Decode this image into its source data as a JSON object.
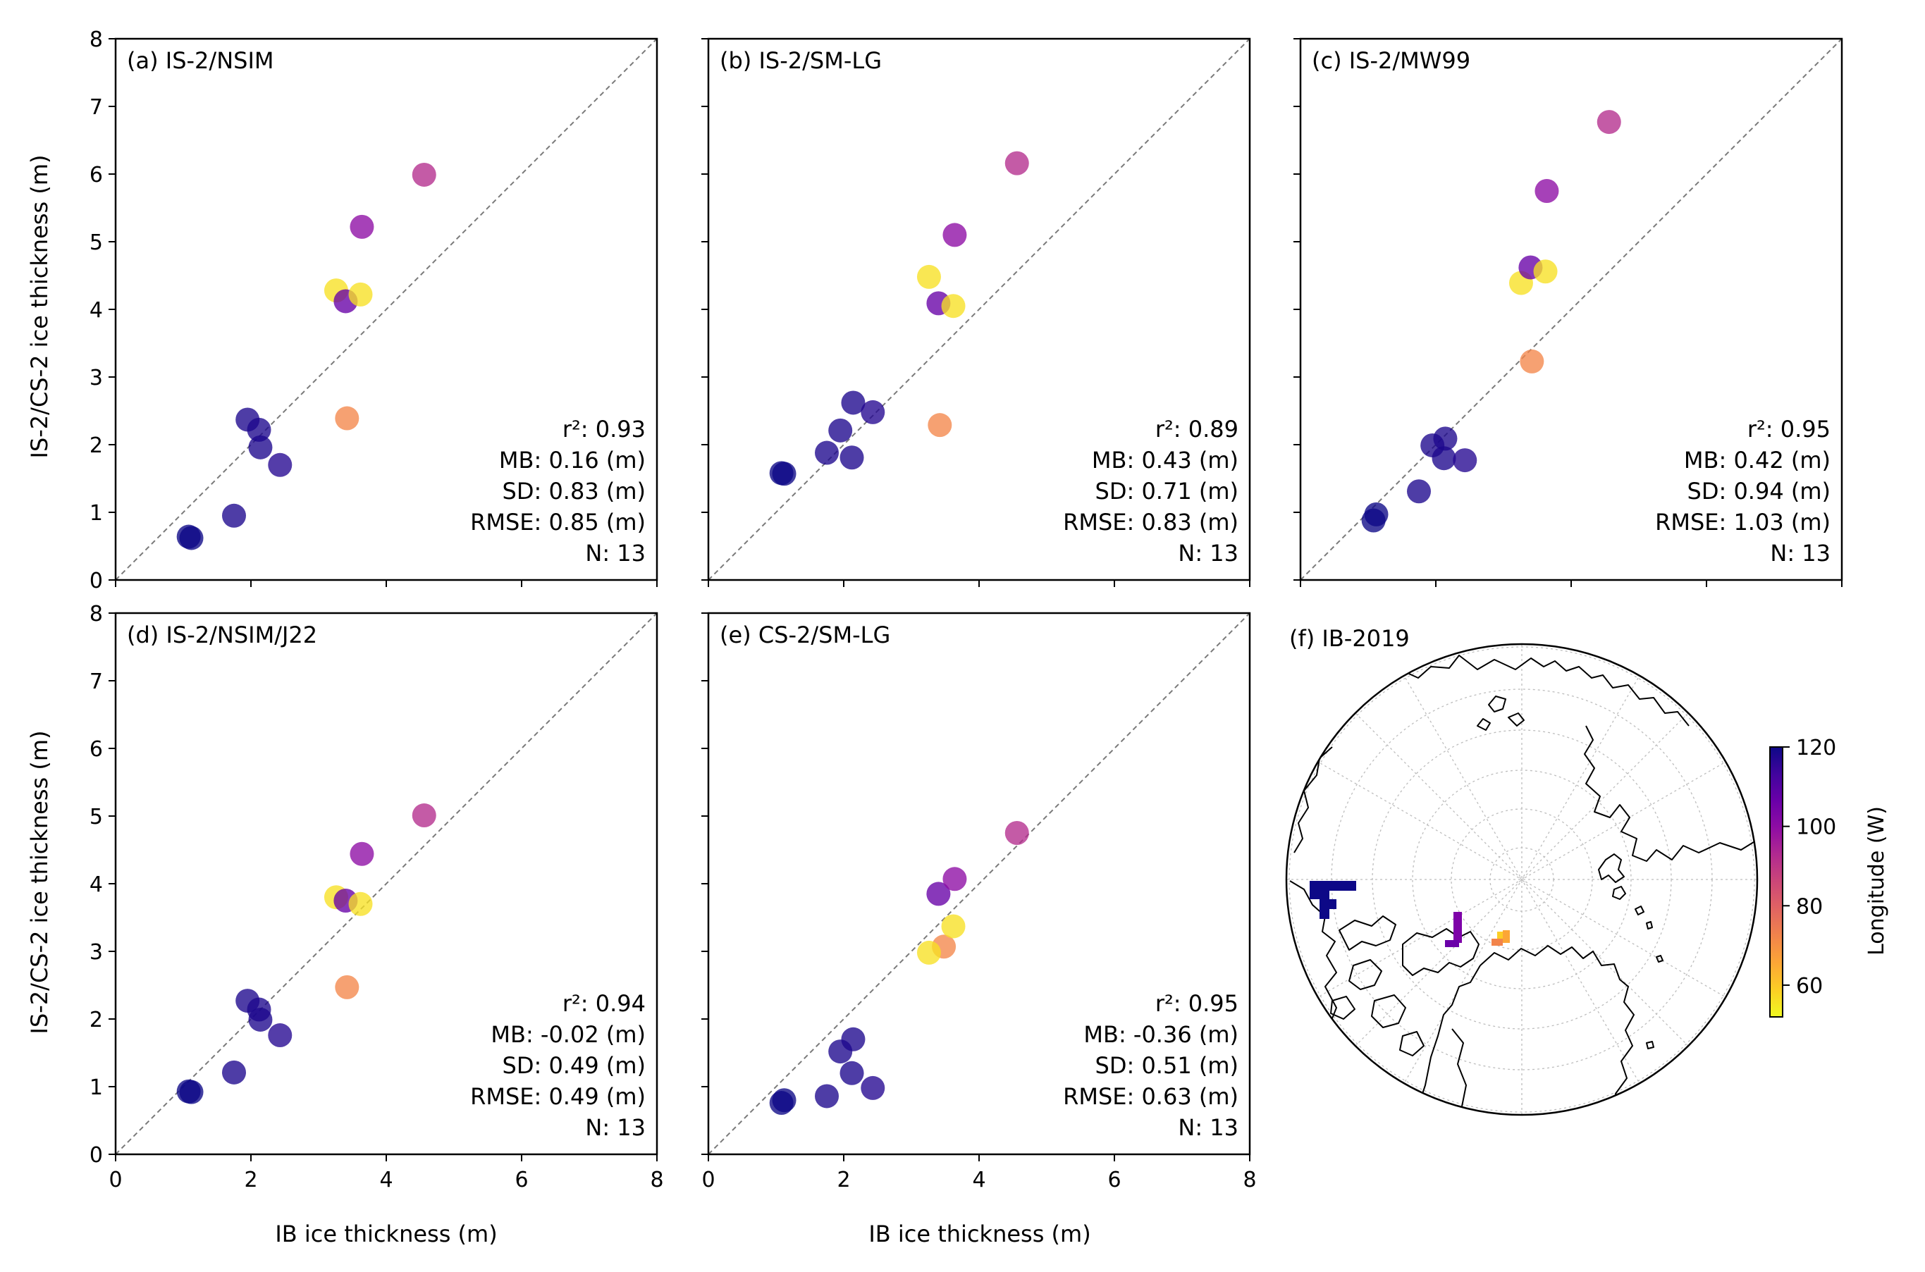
{
  "figure": {
    "ylabel": "IS-2/CS-2 ice thickness (m)",
    "xlabel": "IB ice thickness (m)",
    "ticks": [
      "0",
      "1",
      "2",
      "3",
      "4",
      "5",
      "6",
      "7",
      "8"
    ],
    "xticks": [
      "0",
      "2",
      "4",
      "6",
      "8"
    ],
    "map_title": "(f) IB-2019",
    "colorbar_label": "Longitude (W)",
    "colorbar_ticks": [
      "120",
      "100",
      "80",
      "60"
    ],
    "colorbar_range": [
      52,
      120
    ],
    "colormap": [
      "#0d0887",
      "#41049d",
      "#6a00a8",
      "#8f0da4",
      "#b12a90",
      "#cc4778",
      "#e16462",
      "#f2844b",
      "#fca636",
      "#fcce25",
      "#f0f921"
    ]
  },
  "chart_data": [
    {
      "type": "scatter",
      "title": "(a) IS-2/NSIM",
      "xlim": [
        0,
        8
      ],
      "ylim": [
        0,
        8
      ],
      "stats": [
        "r²: 0.93",
        "MB: 0.16 (m)",
        "SD: 0.83 (m)",
        "RMSE: 0.85 (m)",
        "N: 13"
      ],
      "points": [
        {
          "x": 1.08,
          "y": 0.64,
          "lon": 120
        },
        {
          "x": 1.12,
          "y": 0.62,
          "lon": 120
        },
        {
          "x": 1.75,
          "y": 0.95,
          "lon": 118
        },
        {
          "x": 1.95,
          "y": 2.37,
          "lon": 118
        },
        {
          "x": 2.12,
          "y": 2.22,
          "lon": 118
        },
        {
          "x": 2.14,
          "y": 1.96,
          "lon": 118
        },
        {
          "x": 2.43,
          "y": 1.7,
          "lon": 117
        },
        {
          "x": 3.42,
          "y": 2.39,
          "lon": 72
        },
        {
          "x": 3.26,
          "y": 4.28,
          "lon": 56
        },
        {
          "x": 3.4,
          "y": 4.12,
          "lon": 107
        },
        {
          "x": 3.62,
          "y": 4.22,
          "lon": 56
        },
        {
          "x": 3.64,
          "y": 5.22,
          "lon": 100
        },
        {
          "x": 4.56,
          "y": 5.99,
          "lon": 92
        }
      ]
    },
    {
      "type": "scatter",
      "title": "(b) IS-2/SM-LG",
      "xlim": [
        0,
        8
      ],
      "ylim": [
        0,
        8
      ],
      "stats": [
        "r²: 0.89",
        "MB: 0.43 (m)",
        "SD: 0.71 (m)",
        "RMSE: 0.83 (m)",
        "N: 13"
      ],
      "points": [
        {
          "x": 1.08,
          "y": 1.58,
          "lon": 120
        },
        {
          "x": 1.12,
          "y": 1.57,
          "lon": 120
        },
        {
          "x": 1.75,
          "y": 1.88,
          "lon": 118
        },
        {
          "x": 1.95,
          "y": 2.21,
          "lon": 118
        },
        {
          "x": 2.12,
          "y": 1.81,
          "lon": 118
        },
        {
          "x": 2.14,
          "y": 2.62,
          "lon": 118
        },
        {
          "x": 2.43,
          "y": 2.48,
          "lon": 117
        },
        {
          "x": 3.42,
          "y": 2.29,
          "lon": 72
        },
        {
          "x": 3.26,
          "y": 4.48,
          "lon": 56
        },
        {
          "x": 3.4,
          "y": 4.09,
          "lon": 107
        },
        {
          "x": 3.62,
          "y": 4.05,
          "lon": 56
        },
        {
          "x": 3.64,
          "y": 5.1,
          "lon": 100
        },
        {
          "x": 4.56,
          "y": 6.16,
          "lon": 92
        }
      ]
    },
    {
      "type": "scatter",
      "title": "(c) IS-2/MW99",
      "xlim": [
        0,
        8
      ],
      "ylim": [
        0,
        8
      ],
      "stats": [
        "r²: 0.95",
        "MB: 0.42 (m)",
        "SD: 0.94 (m)",
        "RMSE: 1.03 (m)",
        "N: 13"
      ],
      "points": [
        {
          "x": 1.08,
          "y": 0.88,
          "lon": 120
        },
        {
          "x": 1.12,
          "y": 0.97,
          "lon": 120
        },
        {
          "x": 1.75,
          "y": 1.31,
          "lon": 118
        },
        {
          "x": 1.95,
          "y": 1.99,
          "lon": 118
        },
        {
          "x": 2.12,
          "y": 1.8,
          "lon": 118
        },
        {
          "x": 2.14,
          "y": 2.09,
          "lon": 118
        },
        {
          "x": 2.43,
          "y": 1.77,
          "lon": 117
        },
        {
          "x": 3.42,
          "y": 3.23,
          "lon": 72
        },
        {
          "x": 3.26,
          "y": 4.39,
          "lon": 56
        },
        {
          "x": 3.4,
          "y": 4.62,
          "lon": 107
        },
        {
          "x": 3.62,
          "y": 4.56,
          "lon": 56
        },
        {
          "x": 3.64,
          "y": 5.75,
          "lon": 100
        },
        {
          "x": 4.56,
          "y": 6.77,
          "lon": 92
        }
      ]
    },
    {
      "type": "scatter",
      "title": "(d) IS-2/NSIM/J22",
      "xlim": [
        0,
        8
      ],
      "ylim": [
        0,
        8
      ],
      "stats": [
        "r²: 0.94",
        "MB: -0.02 (m)",
        "SD: 0.49 (m)",
        "RMSE: 0.49 (m)",
        "N: 13"
      ],
      "points": [
        {
          "x": 1.08,
          "y": 0.93,
          "lon": 120
        },
        {
          "x": 1.12,
          "y": 0.92,
          "lon": 120
        },
        {
          "x": 1.75,
          "y": 1.21,
          "lon": 118
        },
        {
          "x": 1.95,
          "y": 2.27,
          "lon": 118
        },
        {
          "x": 2.12,
          "y": 2.14,
          "lon": 118
        },
        {
          "x": 2.14,
          "y": 1.99,
          "lon": 118
        },
        {
          "x": 2.43,
          "y": 1.76,
          "lon": 117
        },
        {
          "x": 3.42,
          "y": 2.47,
          "lon": 72
        },
        {
          "x": 3.26,
          "y": 3.8,
          "lon": 56
        },
        {
          "x": 3.4,
          "y": 3.75,
          "lon": 107
        },
        {
          "x": 3.62,
          "y": 3.7,
          "lon": 56
        },
        {
          "x": 3.64,
          "y": 4.44,
          "lon": 100
        },
        {
          "x": 4.56,
          "y": 5.01,
          "lon": 92
        }
      ]
    },
    {
      "type": "scatter",
      "title": "(e) CS-2/SM-LG",
      "xlim": [
        0,
        8
      ],
      "ylim": [
        0,
        8
      ],
      "stats": [
        "r²: 0.95",
        "MB: -0.36 (m)",
        "SD: 0.51 (m)",
        "RMSE: 0.63 (m)",
        "N: 13"
      ],
      "points": [
        {
          "x": 1.08,
          "y": 0.76,
          "lon": 120
        },
        {
          "x": 1.12,
          "y": 0.8,
          "lon": 120
        },
        {
          "x": 1.75,
          "y": 0.86,
          "lon": 118
        },
        {
          "x": 1.95,
          "y": 1.52,
          "lon": 118
        },
        {
          "x": 2.12,
          "y": 1.2,
          "lon": 118
        },
        {
          "x": 2.14,
          "y": 1.7,
          "lon": 118
        },
        {
          "x": 2.43,
          "y": 0.98,
          "lon": 117
        },
        {
          "x": 3.48,
          "y": 3.07,
          "lon": 72
        },
        {
          "x": 3.26,
          "y": 2.98,
          "lon": 56
        },
        {
          "x": 3.4,
          "y": 3.85,
          "lon": 107
        },
        {
          "x": 3.62,
          "y": 3.37,
          "lon": 56
        },
        {
          "x": 3.64,
          "y": 4.07,
          "lon": 100
        },
        {
          "x": 4.56,
          "y": 4.75,
          "lon": 92
        }
      ]
    }
  ]
}
